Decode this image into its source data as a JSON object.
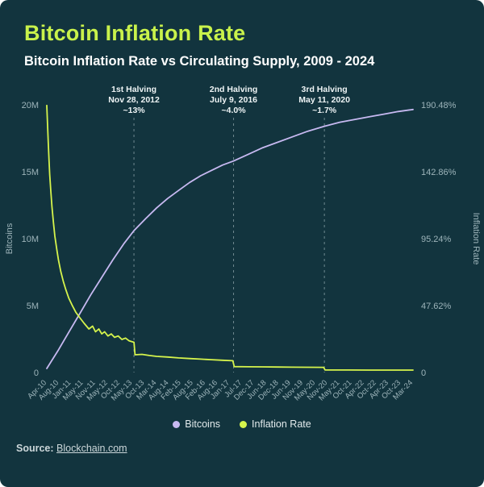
{
  "header": {
    "title": "Bitcoin Inflation Rate",
    "subtitle": "Bitcoin Inflation Rate vs Circulating Supply, 2009 - 2024"
  },
  "footer": {
    "source_label": "Source:",
    "source_link": "Blockchain.com"
  },
  "colors": {
    "background": "#12343e",
    "title_accent": "#c9f24b",
    "supply_line": "#c7b9f1",
    "inflation_line": "#d6f44c",
    "tick_text": "#9db4ba"
  },
  "chart_data": {
    "type": "line",
    "title": "Bitcoin Inflation Rate vs Circulating Supply, 2009 - 2024",
    "x_labels": [
      "Apr-10",
      "Aug-10",
      "Jan-11",
      "May-11",
      "Nov-11",
      "May-12",
      "Oct-12",
      "May-13",
      "Oct-13",
      "Mar-14",
      "Aug-14",
      "Feb-15",
      "Aug-15",
      "Feb-16",
      "Aug-16",
      "Jan-17",
      "Jul-17",
      "Dec-17",
      "Jun-18",
      "Dec-18",
      "Jun-19",
      "Nov-19",
      "May-20",
      "Nov-20",
      "May-21",
      "Oct-21",
      "Apr-22",
      "Oct-22",
      "Apr-23",
      "Oct-23",
      "Mar-24"
    ],
    "left_axis": {
      "label": "Bitcoins",
      "ticks": [
        "0",
        "5M",
        "10M",
        "15M",
        "20M"
      ],
      "min": 0,
      "max": 20
    },
    "right_axis": {
      "label": "Inflation Rate",
      "ticks": [
        "0",
        "47.62%",
        "95.24%",
        "142.86%",
        "190.48%"
      ],
      "min": 0,
      "max": 190.48
    },
    "grid": false,
    "legend_position": "bottom",
    "annotations": [
      {
        "x": 0.238,
        "lines": [
          "1st Halving",
          "Nov 28, 2012",
          "~13%"
        ]
      },
      {
        "x": 0.51,
        "lines": [
          "2nd Halving",
          "July 9, 2016",
          "~4.0%"
        ]
      },
      {
        "x": 0.758,
        "lines": [
          "3rd Halving",
          "May 11, 2020",
          "~1.7%"
        ]
      }
    ],
    "series": [
      {
        "name": "Bitcoins",
        "axis": "left",
        "unit": "M",
        "color": "#c7b9f1",
        "points": [
          [
            0,
            0.3
          ],
          [
            0.03,
            1.6
          ],
          [
            0.06,
            3.0
          ],
          [
            0.09,
            4.4
          ],
          [
            0.12,
            5.8
          ],
          [
            0.15,
            7.1
          ],
          [
            0.18,
            8.4
          ],
          [
            0.21,
            9.6
          ],
          [
            0.238,
            10.6
          ],
          [
            0.27,
            11.5
          ],
          [
            0.3,
            12.3
          ],
          [
            0.33,
            13.0
          ],
          [
            0.36,
            13.6
          ],
          [
            0.39,
            14.2
          ],
          [
            0.42,
            14.7
          ],
          [
            0.45,
            15.1
          ],
          [
            0.48,
            15.5
          ],
          [
            0.51,
            15.8
          ],
          [
            0.55,
            16.3
          ],
          [
            0.59,
            16.8
          ],
          [
            0.63,
            17.2
          ],
          [
            0.67,
            17.6
          ],
          [
            0.71,
            18.0
          ],
          [
            0.758,
            18.4
          ],
          [
            0.8,
            18.7
          ],
          [
            0.84,
            18.9
          ],
          [
            0.88,
            19.1
          ],
          [
            0.92,
            19.3
          ],
          [
            0.96,
            19.5
          ],
          [
            1,
            19.65
          ]
        ]
      },
      {
        "name": "Inflation Rate",
        "axis": "right",
        "unit": "%",
        "color": "#d6f44c",
        "points": [
          [
            0,
            190
          ],
          [
            0.002,
            177
          ],
          [
            0.004,
            164
          ],
          [
            0.006,
            152
          ],
          [
            0.008,
            141
          ],
          [
            0.011,
            129
          ],
          [
            0.014,
            118
          ],
          [
            0.018,
            107
          ],
          [
            0.022,
            97
          ],
          [
            0.027,
            88
          ],
          [
            0.032,
            80
          ],
          [
            0.038,
            72
          ],
          [
            0.045,
            65
          ],
          [
            0.052,
            59
          ],
          [
            0.06,
            53
          ],
          [
            0.069,
            48
          ],
          [
            0.079,
            43
          ],
          [
            0.09,
            39
          ],
          [
            0.102,
            35
          ],
          [
            0.115,
            31
          ],
          [
            0.125,
            33
          ],
          [
            0.133,
            29
          ],
          [
            0.142,
            31
          ],
          [
            0.15,
            27.5
          ],
          [
            0.158,
            29
          ],
          [
            0.167,
            26
          ],
          [
            0.176,
            27.5
          ],
          [
            0.185,
            25
          ],
          [
            0.195,
            26
          ],
          [
            0.205,
            23.5
          ],
          [
            0.215,
            24.5
          ],
          [
            0.225,
            22.5
          ],
          [
            0.238,
            21.5
          ],
          [
            0.241,
            12.6
          ],
          [
            0.26,
            12.9
          ],
          [
            0.28,
            12.1
          ],
          [
            0.3,
            11.5
          ],
          [
            0.33,
            11.0
          ],
          [
            0.36,
            10.4
          ],
          [
            0.39,
            9.9
          ],
          [
            0.42,
            9.5
          ],
          [
            0.45,
            9.1
          ],
          [
            0.48,
            8.7
          ],
          [
            0.508,
            8.4
          ],
          [
            0.512,
            4.2
          ],
          [
            0.55,
            4.1
          ],
          [
            0.59,
            4.0
          ],
          [
            0.63,
            3.9
          ],
          [
            0.67,
            3.8
          ],
          [
            0.71,
            3.75
          ],
          [
            0.756,
            3.7
          ],
          [
            0.76,
            1.8
          ],
          [
            0.82,
            1.77
          ],
          [
            0.88,
            1.74
          ],
          [
            0.94,
            1.72
          ],
          [
            1,
            1.7
          ]
        ]
      }
    ]
  }
}
